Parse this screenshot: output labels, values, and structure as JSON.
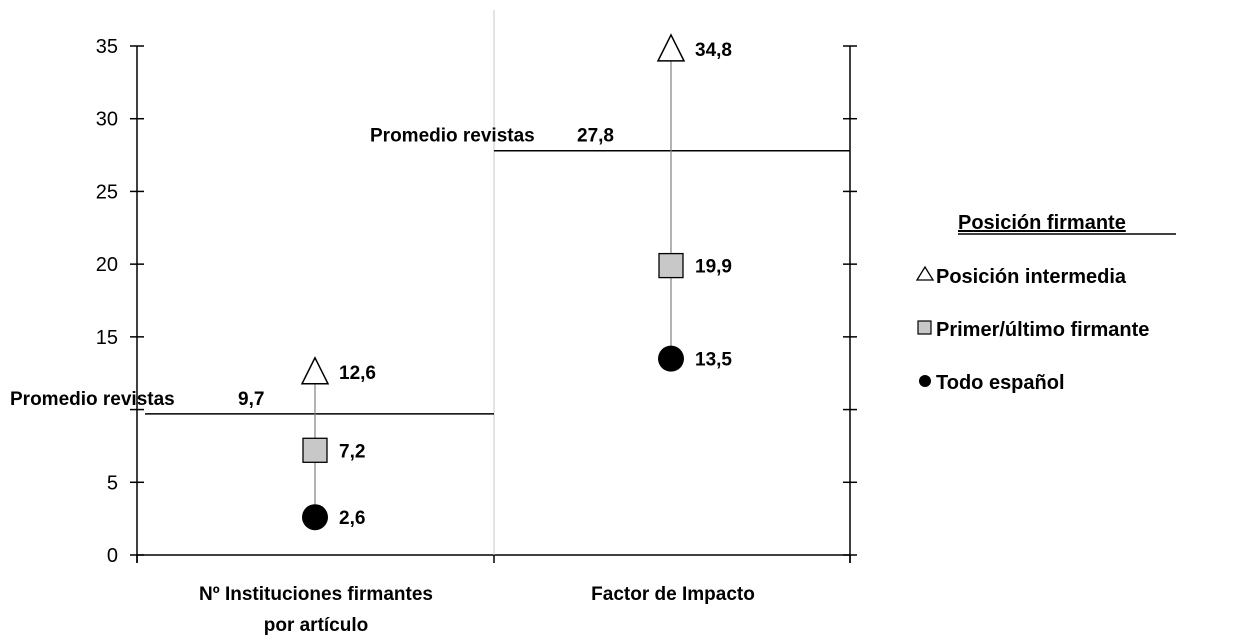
{
  "chart_data": {
    "type": "scatter",
    "categories": [
      "Nº Instituciones firmantes por artículo",
      "Factor de Impacto"
    ],
    "category_label_lines": [
      [
        "Nº Instituciones firmantes",
        "por artículo"
      ],
      [
        "Factor de Impacto"
      ]
    ],
    "ylim": [
      0,
      35
    ],
    "yticks": [
      0,
      5,
      10,
      15,
      20,
      25,
      30,
      35
    ],
    "ytick_labels": [
      "0",
      "5",
      "",
      "15",
      "20",
      "25",
      "30",
      "35"
    ],
    "series": [
      {
        "name": "Posición intermedia",
        "marker": "triangle",
        "values": [
          12.6,
          34.8
        ],
        "labels": [
          "12,6",
          "34,8"
        ]
      },
      {
        "name": "Primer/último firmante",
        "marker": "square",
        "values": [
          7.2,
          19.9
        ],
        "labels": [
          "7,2",
          "19,9"
        ]
      },
      {
        "name": "Todo español",
        "marker": "circle",
        "values": [
          2.6,
          13.5
        ],
        "labels": [
          "2,6",
          "13,5"
        ]
      }
    ],
    "reference_lines": [
      {
        "category_index": 0,
        "value": 9.7,
        "label": "Promedio revistas",
        "value_label": "9,7"
      },
      {
        "category_index": 1,
        "value": 27.8,
        "label": "Promedio revistas",
        "value_label": "27,8"
      }
    ],
    "legend": {
      "title": "Posición firmante",
      "position": "right"
    },
    "colors": {
      "triangle_fill": "#ffffff",
      "square_fill": "#c8c8c8",
      "circle_fill": "#000000",
      "line": "#000000",
      "divider": "#c8c8c8",
      "connector": "#808080"
    }
  }
}
